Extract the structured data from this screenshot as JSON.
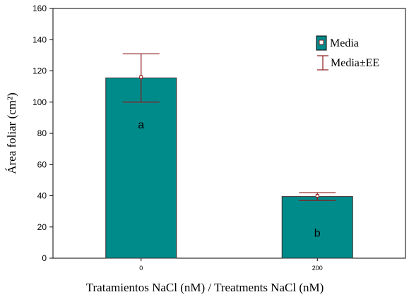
{
  "chart_data": {
    "type": "bar",
    "categories": [
      "0",
      "200"
    ],
    "values": [
      115.5,
      39.5
    ],
    "error": [
      15.5,
      2.5
    ],
    "annotations": [
      "a",
      "b"
    ],
    "xlabel": "Tratamientos NaCl (nM) / Treatments NaCl (nM)",
    "ylabel": "Área foliar (cm²)",
    "ylim": [
      0,
      160
    ],
    "yticks": [
      0,
      20,
      40,
      60,
      80,
      100,
      120,
      140,
      160
    ],
    "grid": false,
    "legend": {
      "placement": "top-right",
      "entries": [
        "Media",
        "Media±EE"
      ]
    },
    "colors": {
      "bar_fill": "#008B8B",
      "bar_edge": "#3a2a2a",
      "error_bar": "#8B1A1A"
    }
  }
}
